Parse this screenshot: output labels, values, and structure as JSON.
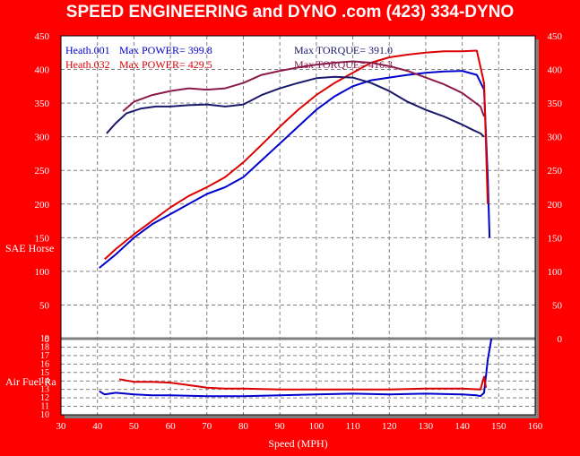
{
  "header": {
    "title": "SPEED ENGINEERING and DYNO .com      (423) 334-DYNO"
  },
  "colors": {
    "background": "#ff0000",
    "plot": "#ffffff",
    "grid": "#808080",
    "heath001": "#0000cc",
    "heath032": "#dd0000",
    "shadow": "#808080"
  },
  "chart_data": {
    "type": "line",
    "xlabel": "Speed (MPH)",
    "ylabel_top": "SAE Horse",
    "ylabel_bottom": "Air Fuel Ra",
    "xlim": [
      30,
      160
    ],
    "x_ticks": [
      "30",
      "40",
      "50",
      "60",
      "70",
      "80",
      "90",
      "100",
      "110",
      "120",
      "130",
      "140",
      "150",
      "160"
    ],
    "ylim_top": [
      0,
      450
    ],
    "y_ticks_top": [
      "0",
      "50",
      "100",
      "150",
      "200",
      "250",
      "300",
      "350",
      "400",
      "450"
    ],
    "ylim_bottom": [
      10,
      19
    ],
    "y_ticks_bottom": [
      "19",
      "18",
      "17",
      "16",
      "15",
      "14",
      "13",
      "12",
      "11",
      "10"
    ],
    "grid": true,
    "legend": [
      {
        "run": "Heath.001",
        "power_label": "Max POWER= 399.8",
        "torque_label": "Max TORQUE= 391.0",
        "color": "#0000cc"
      },
      {
        "run": "Heath.032",
        "power_label": "Max POWER= 429.5",
        "torque_label": "Max TORQUE= 416.3",
        "color": "#dd0000"
      }
    ],
    "series": [
      {
        "name": "Heath.001",
        "kind": "power",
        "color": "#0000cc",
        "x": [
          40.5,
          45,
          50,
          55,
          60,
          65,
          70,
          75,
          80,
          85,
          90,
          95,
          100,
          105,
          110,
          115,
          120,
          125,
          130,
          135,
          140,
          144,
          146,
          147,
          147.5
        ],
        "y": [
          105,
          125,
          150,
          170,
          185,
          200,
          215,
          225,
          240,
          265,
          290,
          315,
          340,
          360,
          375,
          384,
          388,
          392,
          395,
          397,
          398,
          392,
          370,
          240,
          150
        ]
      },
      {
        "name": "Heath.032",
        "kind": "power",
        "color": "#dd0000",
        "x": [
          42,
          45,
          50,
          55,
          60,
          65,
          70,
          75,
          80,
          85,
          90,
          95,
          100,
          105,
          110,
          115,
          120,
          125,
          130,
          135,
          140,
          144,
          146,
          147
        ],
        "y": [
          118,
          133,
          155,
          175,
          195,
          212,
          225,
          240,
          262,
          288,
          315,
          340,
          362,
          380,
          395,
          410,
          418,
          422,
          425,
          427,
          427,
          428,
          380,
          200
        ]
      },
      {
        "name": "Heath.001",
        "kind": "torque",
        "color": "#0000cc",
        "x": [
          42.5,
          45,
          48,
          52,
          56,
          60,
          65,
          70,
          75,
          80,
          85,
          90,
          95,
          100,
          105,
          110,
          115,
          120,
          125,
          130,
          135,
          140,
          143,
          145,
          146
        ],
        "y": [
          305,
          320,
          335,
          342,
          345,
          345,
          347,
          348,
          345,
          348,
          362,
          372,
          380,
          387,
          389,
          388,
          380,
          368,
          352,
          340,
          330,
          318,
          310,
          305,
          300
        ]
      },
      {
        "name": "Heath.032",
        "kind": "torque",
        "color": "#dd0000",
        "x": [
          47,
          50,
          55,
          60,
          65,
          70,
          75,
          80,
          85,
          90,
          95,
          100,
          105,
          110,
          115,
          120,
          125,
          130,
          135,
          140,
          145,
          146
        ],
        "y": [
          338,
          352,
          362,
          368,
          372,
          370,
          372,
          380,
          392,
          398,
          403,
          407,
          410,
          412,
          410,
          405,
          398,
          388,
          378,
          365,
          345,
          330
        ]
      },
      {
        "name": "Heath.001",
        "kind": "afr",
        "color": "#0000cc",
        "x": [
          40.5,
          42,
          45,
          50,
          55,
          60,
          70,
          80,
          90,
          100,
          110,
          120,
          130,
          140,
          144,
          145,
          146,
          147,
          148
        ],
        "y": [
          12.8,
          12.4,
          12.6,
          12.4,
          12.3,
          12.3,
          12.2,
          12.2,
          12.3,
          12.4,
          12.5,
          12.4,
          12.5,
          12.4,
          12.3,
          12.2,
          12.6,
          16.5,
          19
        ]
      },
      {
        "name": "Heath.032",
        "kind": "afr",
        "color": "#dd0000",
        "x": [
          46,
          50,
          55,
          60,
          65,
          70,
          75,
          80,
          90,
          100,
          110,
          120,
          130,
          140,
          145,
          146,
          146.5
        ],
        "y": [
          14.2,
          13.9,
          13.9,
          13.8,
          13.5,
          13.2,
          13.1,
          13.1,
          13.0,
          13.0,
          13.0,
          13.0,
          13.1,
          13.1,
          13.0,
          14.5,
          13.2
        ]
      }
    ]
  }
}
